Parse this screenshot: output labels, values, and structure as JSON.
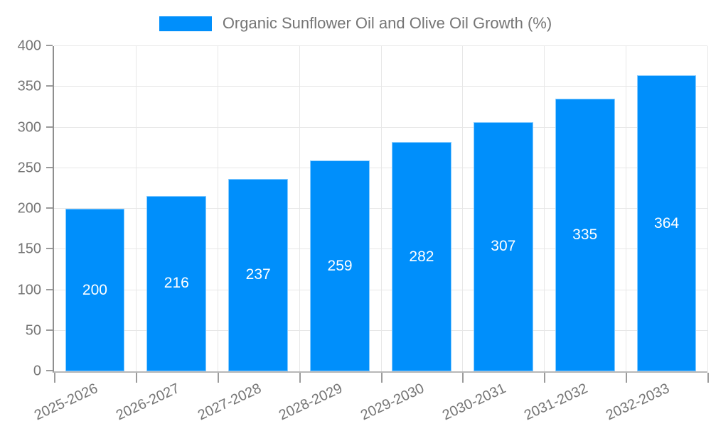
{
  "chart_data": {
    "type": "bar",
    "title": "Organic Sunflower Oil and Olive Oil Growth (%)",
    "legend_position": "top",
    "categories": [
      "2025-2026",
      "2026-2027",
      "2027-2028",
      "2028-2029",
      "2029-2030",
      "2030-2031",
      "2031-2032",
      "2032-2033"
    ],
    "series": [
      {
        "name": "Organic Sunflower Oil and Olive Oil Growth (%)",
        "values": [
          200,
          216,
          237,
          259,
          282,
          307,
          335,
          364
        ]
      }
    ],
    "data_labels": [
      "200",
      "216",
      "237",
      "259",
      "282",
      "307",
      "335",
      "364"
    ],
    "xlabel": "",
    "ylabel": "",
    "ylim": [
      0,
      400
    ],
    "ytick_step": 50,
    "yticks": [
      0,
      50,
      100,
      150,
      200,
      250,
      300,
      350,
      400
    ],
    "grid": "horizontal and vertical light gray",
    "colors": {
      "bar": "#008FFB",
      "bar_value_text": "#ffffff",
      "axis_text": "#757575",
      "legend_text": "#757575",
      "gridline": "#e7e7e7",
      "y_axis_line": "#8f8f8f",
      "x_axis_line": "#b7b7b7",
      "background": "#ffffff"
    }
  }
}
